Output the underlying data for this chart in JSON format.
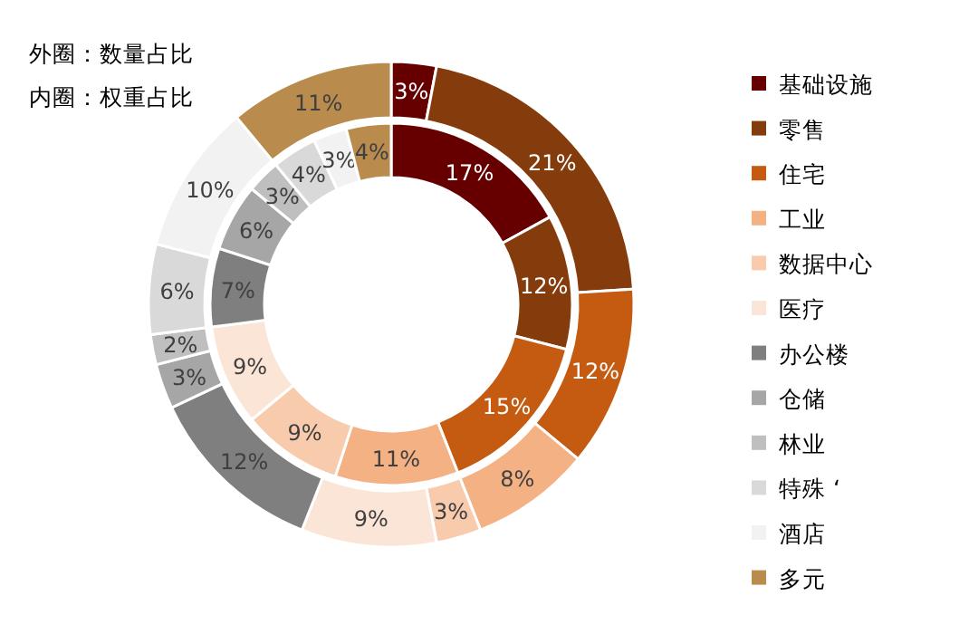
{
  "chart_data": {
    "type": "donut",
    "categories": [
      "基础设施",
      "零售",
      "住宅",
      "工业",
      "数据中心",
      "医疗",
      "办公楼",
      "仓储",
      "林业",
      "特殊 ‘",
      "酒店",
      "多元"
    ],
    "colors": [
      "#660000",
      "#843c0c",
      "#c55a11",
      "#f4b183",
      "#f8cbad",
      "#fbe5d6",
      "#7f7f7f",
      "#a6a6a6",
      "#bfbfbf",
      "#d9d9d9",
      "#f2f2f2",
      "#b98c4e"
    ],
    "series": [
      {
        "values": [
          3,
          21,
          12,
          8,
          3,
          9,
          12,
          3,
          2,
          6,
          10,
          11
        ],
        "value_labels": [
          "3%",
          "21%",
          "12%",
          "8%",
          "3%",
          "9%",
          "12%",
          "3%",
          "2%",
          "6%",
          "10%",
          "11%"
        ]
      },
      {
        "values": [
          17,
          12,
          15,
          11,
          9,
          9,
          7,
          6,
          3,
          4,
          3,
          4
        ],
        "value_labels": [
          "17%",
          "12%",
          "15%",
          "11%",
          "9%",
          "9%",
          "7%",
          "6%",
          "3%",
          "4%",
          "3%",
          "4%"
        ]
      }
    ],
    "legend": "right",
    "annotations": [
      "外圈：数量占比",
      "内圈：权重占比"
    ]
  }
}
